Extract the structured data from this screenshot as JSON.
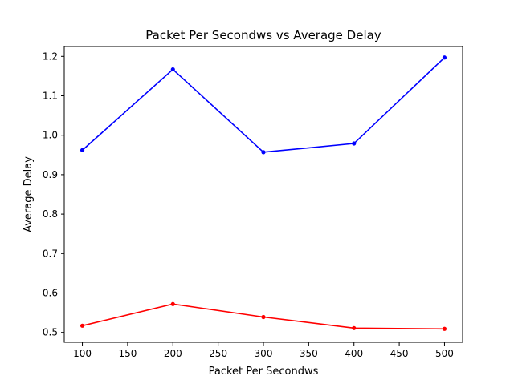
{
  "chart_data": {
    "type": "line",
    "title": "Packet Per Secondws vs Average Delay",
    "xlabel": "Packet Per Secondws",
    "ylabel": "Average Delay",
    "x": [
      100,
      200,
      300,
      400,
      500
    ],
    "xlim": [
      80,
      520
    ],
    "ylim": [
      0.475,
      1.225
    ],
    "xticks": [
      100,
      150,
      200,
      250,
      300,
      350,
      400,
      450,
      500
    ],
    "yticks": [
      0.5,
      0.6,
      0.7,
      0.8,
      0.9,
      1.0,
      1.1,
      1.2
    ],
    "ytick_labels": [
      "0.5",
      "0.6",
      "0.7",
      "0.8",
      "0.9",
      "1.0",
      "1.1",
      "1.2"
    ],
    "grid": false,
    "series": [
      {
        "color": "#0000ff",
        "marker": "circle",
        "values": [
          0.962,
          1.167,
          0.957,
          0.979,
          1.197
        ]
      },
      {
        "color": "#ff0000",
        "marker": "circle",
        "values": [
          0.517,
          0.572,
          0.539,
          0.511,
          0.509
        ]
      }
    ]
  }
}
